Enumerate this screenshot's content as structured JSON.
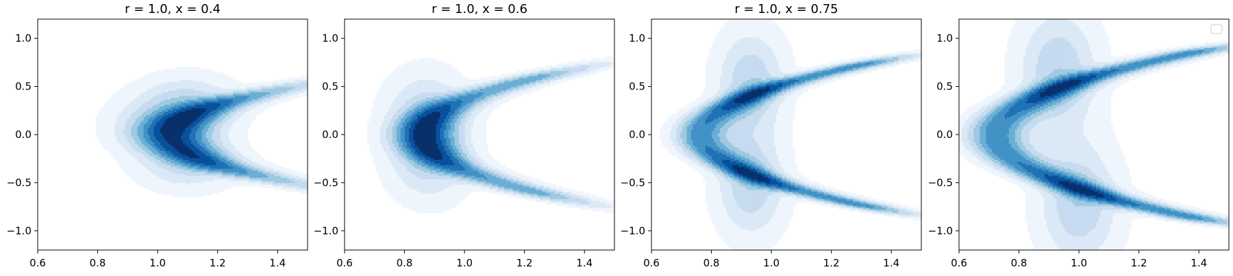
{
  "figure": {
    "background": "#ffffff"
  },
  "chart_data": [
    {
      "type": "contour",
      "title": "r = 1.0, x = 0.4",
      "xlabel": "",
      "ylabel": "",
      "xlim": [
        0.6,
        1.5
      ],
      "ylim": [
        -1.2,
        1.2
      ],
      "xticks": [
        0.6,
        0.8,
        1.0,
        1.2,
        1.4
      ],
      "xtick_labels": [
        "0.6",
        "0.8",
        "1.0",
        "1.2",
        "1.4"
      ],
      "yticks": [
        -1.0,
        -0.5,
        0.0,
        0.5,
        1.0
      ],
      "ytick_labels": [
        "−1.0",
        "−0.5",
        "0.0",
        "0.5",
        "1.0"
      ],
      "grid": false,
      "colormap": "Blues",
      "levels": 9,
      "density_shape": "crescent",
      "crescent": {
        "x_tip": 1.05,
        "x_end": 1.21,
        "arm_y": 0.32,
        "sx": 0.085,
        "sy": 0.2
      },
      "peaks": [
        {
          "x": 1.1,
          "y": 0.33,
          "weight": 1.0
        },
        {
          "x": 1.0,
          "y": 0.1,
          "weight": 0.85
        },
        {
          "x": 1.1,
          "y": -0.28,
          "weight": 1.0
        }
      ],
      "legend": null
    },
    {
      "type": "contour",
      "title": "r = 1.0, x = 0.6",
      "xlabel": "",
      "ylabel": "",
      "xlim": [
        0.6,
        1.5
      ],
      "ylim": [
        -1.2,
        1.2
      ],
      "xticks": [
        0.6,
        0.8,
        1.0,
        1.2,
        1.4
      ],
      "xtick_labels": [
        "0.6",
        "0.8",
        "1.0",
        "1.2",
        "1.4"
      ],
      "yticks": [
        -1.0,
        -0.5,
        0.0,
        0.5,
        1.0
      ],
      "ytick_labels": [
        "−1.0",
        "−0.5",
        "0.0",
        "0.5",
        "1.0"
      ],
      "grid": false,
      "colormap": "Blues",
      "levels": 9,
      "density_shape": "crescent",
      "crescent": {
        "x_tip": 0.86,
        "x_end": 1.19,
        "arm_y": 0.56,
        "sx": 0.07,
        "sy": 0.13
      },
      "peaks": [
        {
          "x": 0.87,
          "y": 0.22,
          "weight": 1.0
        },
        {
          "x": 0.88,
          "y": -0.25,
          "weight": 1.0
        }
      ],
      "legend": null
    },
    {
      "type": "contour",
      "title": "r = 1.0, x = 0.75",
      "xlabel": "",
      "ylabel": "",
      "xlim": [
        0.6,
        1.5
      ],
      "ylim": [
        -1.2,
        1.2
      ],
      "xticks": [
        0.6,
        0.8,
        1.0,
        1.2,
        1.4
      ],
      "xtick_labels": [
        "0.6",
        "0.8",
        "1.0",
        "1.2",
        "1.4"
      ],
      "yticks": [
        -1.0,
        -0.5,
        0.0,
        0.5,
        1.0
      ],
      "ytick_labels": [
        "−1.0",
        "−0.5",
        "0.0",
        "0.5",
        "1.0"
      ],
      "grid": false,
      "colormap": "Blues",
      "levels": 9,
      "density_shape": "crescent",
      "crescent": {
        "x_tip": 0.76,
        "x_end": 1.28,
        "arm_y": 0.72,
        "sx": 0.06,
        "sy": 0.085
      },
      "peaks": [
        {
          "x": 0.93,
          "y": 0.55,
          "weight": 1.0
        },
        {
          "x": 0.93,
          "y": -0.52,
          "weight": 1.0
        }
      ],
      "legend": null
    },
    {
      "type": "contour",
      "title": "",
      "xlabel": "",
      "ylabel": "",
      "xlim": [
        0.6,
        1.5
      ],
      "ylim": [
        -1.2,
        1.2
      ],
      "xticks": [
        0.6,
        0.8,
        1.0,
        1.2,
        1.4
      ],
      "xtick_labels": [
        "0.6",
        "0.8",
        "1.0",
        "1.2",
        "1.4"
      ],
      "yticks": [
        -1.0,
        -0.5,
        0.0,
        0.5,
        1.0
      ],
      "ytick_labels": [
        "−1.0",
        "−0.5",
        "0.0",
        "0.5",
        "1.0"
      ],
      "grid": false,
      "colormap": "Blues",
      "levels": 9,
      "density_shape": "crescent",
      "crescent": {
        "x_tip": 0.72,
        "x_end": 1.36,
        "arm_y": 0.85,
        "sx": 0.07,
        "sy": 0.07
      },
      "peaks": [
        {
          "x": 0.93,
          "y": 0.67,
          "weight": 1.0
        },
        {
          "x": 1.0,
          "y": -0.72,
          "weight": 1.0
        }
      ],
      "legend": "upper right (empty)"
    }
  ]
}
